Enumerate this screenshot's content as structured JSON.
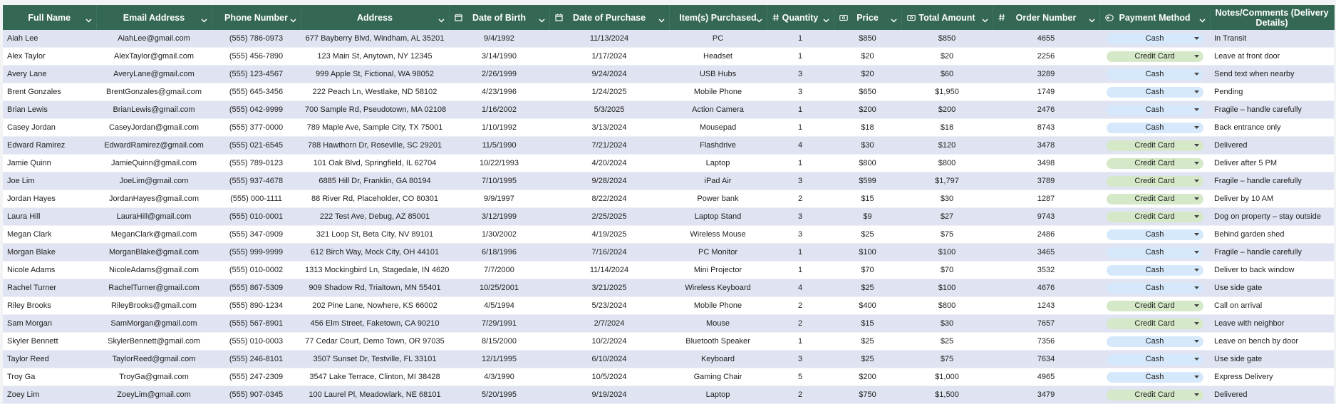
{
  "table": {
    "headers": [
      "Full Name",
      "Email Address",
      "Phone Number",
      "Address",
      "Date of Birth",
      "Date of Purchase",
      "Item(s) Purchased",
      "Quantity",
      "Price",
      "Total Amount",
      "Order Number",
      "Payment Method",
      "Notes/Comments (Delivery Details)"
    ],
    "rows": [
      [
        "Aiah Lee",
        "AiahLee@gmail.com",
        "(555) 786-0973",
        "677 Bayberry Blvd, Windham, AL 35201",
        "9/4/1992",
        "11/13/2024",
        "PC",
        1,
        "$850",
        "$850",
        4655,
        "Cash",
        "In Transit"
      ],
      [
        "Alex Taylor",
        "AlexTaylor@gmail.com",
        "(555) 456-7890",
        "123 Main St, Anytown, NY 12345",
        "3/14/1990",
        "1/17/2024",
        "Headset",
        1,
        "$20",
        "$20",
        2256,
        "Credit Card",
        "Leave at front door"
      ],
      [
        "Avery Lane",
        "AveryLane@gmail.com",
        "(555) 123-4567",
        "999 Apple St, Fictional, WA 98052",
        "2/26/1999",
        "9/24/2024",
        "USB Hubs",
        3,
        "$20",
        "$60",
        3289,
        "Cash",
        "Send text when nearby"
      ],
      [
        "Brent Gonzales",
        "BrentGonzales@gmail.com",
        "(555) 645-3456",
        "222 Peach Ln, Westlake, ND 58102",
        "4/23/1996",
        "1/24/2025",
        "Mobile Phone",
        3,
        "$650",
        "$1,950",
        1749,
        "Cash",
        "Pending"
      ],
      [
        "Brian Lewis",
        "BrianLewis@gmail.com",
        "(555) 042-9999",
        "700 Sample Rd, Pseudotown, MA 02108",
        "1/16/2002",
        "5/3/2025",
        "Action Camera",
        1,
        "$200",
        "$200",
        2476,
        "Cash",
        "Fragile – handle carefully"
      ],
      [
        "Casey Jordan",
        "CaseyJordan@gmail.com",
        "(555) 377-0000",
        "789 Maple Ave, Sample City, TX 75001",
        "1/10/1992",
        "3/13/2024",
        "Mousepad",
        1,
        "$18",
        "$18",
        8743,
        "Cash",
        "Back entrance only"
      ],
      [
        "Edward Ramirez",
        "EdwardRamirez@gmail.com",
        "(555) 021-6545",
        "788 Hawthorn Dr, Roseville, SC 29201",
        "11/5/1990",
        "7/21/2024",
        "Flashdrive",
        4,
        "$30",
        "$120",
        3478,
        "Credit Card",
        "Delivered"
      ],
      [
        "Jamie Quinn",
        "JamieQuinn@gmail.com",
        "(555) 789-0123",
        "101 Oak Blvd, Springfield, IL 62704",
        "10/22/1993",
        "4/20/2024",
        "Laptop",
        1,
        "$800",
        "$800",
        3498,
        "Credit Card",
        "Deliver after 5 PM"
      ],
      [
        "Joe Lim",
        "JoeLim@gmail.com",
        "(555) 937-4678",
        "6885 Hill Dr, Franklin, GA 80194",
        "7/10/1995",
        "9/28/2024",
        "iPad Air",
        3,
        "$599",
        "$1,797",
        3789,
        "Credit Card",
        "Fragile – handle carefully"
      ],
      [
        "Jordan Hayes",
        "JordanHayes@gmail.com",
        "(555) 000-1111",
        "88 River Rd, Placeholder, CO 80301",
        "9/9/1997",
        "8/22/2024",
        "Power bank",
        2,
        "$15",
        "$30",
        1287,
        "Credit Card",
        "Deliver by 10 AM"
      ],
      [
        "Laura Hill",
        "LauraHill@gmail.com",
        "(555) 010-0001",
        "222 Test Ave, Debug, AZ 85001",
        "3/12/1999",
        "2/25/2025",
        "Laptop Stand",
        3,
        "$9",
        "$27",
        9743,
        "Credit Card",
        "Dog on property – stay outside"
      ],
      [
        "Megan Clark",
        "MeganClark@gmail.com",
        "(555) 347-0909",
        "321 Loop St, Beta City, NV 89101",
        "1/30/2002",
        "4/19/2025",
        "Wireless Mouse",
        3,
        "$25",
        "$75",
        2486,
        "Cash",
        "Behind garden shed"
      ],
      [
        "Morgan Blake",
        "MorganBlake@gmail.com",
        "(555) 999-9999",
        "612 Birch Way, Mock City, OH 44101",
        "6/18/1996",
        "7/16/2024",
        "PC Monitor",
        1,
        "$100",
        "$100",
        3465,
        "Cash",
        "Fragile – handle carefully"
      ],
      [
        "Nicole Adams",
        "NicoleAdams@gmail.com",
        "(555) 010-0002",
        "1313 Mockingbird Ln, Stagedale, IN 46201",
        "7/7/2000",
        "11/14/2024",
        "Mini Projector",
        1,
        "$70",
        "$70",
        3532,
        "Cash",
        "Deliver to back window"
      ],
      [
        "Rachel Turner",
        "RachelTurner@gmail.com",
        "(555) 867-5309",
        "909 Shadow Rd, Trialtown, MN 55401",
        "10/25/2001",
        "3/21/2025",
        "Wireless Keyboard",
        4,
        "$25",
        "$100",
        4676,
        "Cash",
        "Use side gate"
      ],
      [
        "Riley Brooks",
        "RileyBrooks@gmail.com",
        "(555) 890-1234",
        "202 Pine Lane, Nowhere, KS 66002",
        "4/5/1994",
        "5/23/2024",
        "Mobile Phone",
        2,
        "$400",
        "$800",
        1243,
        "Credit Card",
        "Call on arrival"
      ],
      [
        "Sam Morgan",
        "SamMorgan@gmail.com",
        "(555) 567-8901",
        "456 Elm Street, Faketown, CA 90210",
        "7/29/1991",
        "2/7/2024",
        "Mouse",
        2,
        "$15",
        "$30",
        7657,
        "Credit Card",
        "Leave with neighbor"
      ],
      [
        "Skyler Bennett",
        "SkylerBennett@gmail.com",
        "(555) 010-0003",
        "77 Cedar Court, Demo Town, OR 97035",
        "8/15/2000",
        "10/2/2024",
        "Bluetooth Speaker",
        1,
        "$25",
        "$25",
        7356,
        "Cash",
        "Leave on bench by door"
      ],
      [
        "Taylor Reed",
        "TaylorReed@gmail.com",
        "(555) 246-8101",
        "3507 Sunset Dr, Testville, FL 33101",
        "12/1/1995",
        "6/10/2024",
        "Keyboard",
        3,
        "$25",
        "$75",
        7634,
        "Cash",
        "Use side gate"
      ],
      [
        "Troy Ga",
        "TroyGa@gmail.com",
        "(555) 247-2309",
        "3547 Lake Terrace, Clinton, MI 38428",
        "4/3/1990",
        "10/5/2024",
        "Gaming Chair",
        5,
        "$200",
        "$1,000",
        4965,
        "Cash",
        "Express Delivery"
      ],
      [
        "Zoey Lim",
        "ZoeyLim@gmail.com",
        "(555) 907-0345",
        "100 Laurel Pl, Meadowlark, NE 68101",
        "5/20/1995",
        "9/19/2024",
        "Laptop",
        2,
        "$750",
        "$1,500",
        3479,
        "Credit Card",
        "Delivered"
      ]
    ]
  }
}
